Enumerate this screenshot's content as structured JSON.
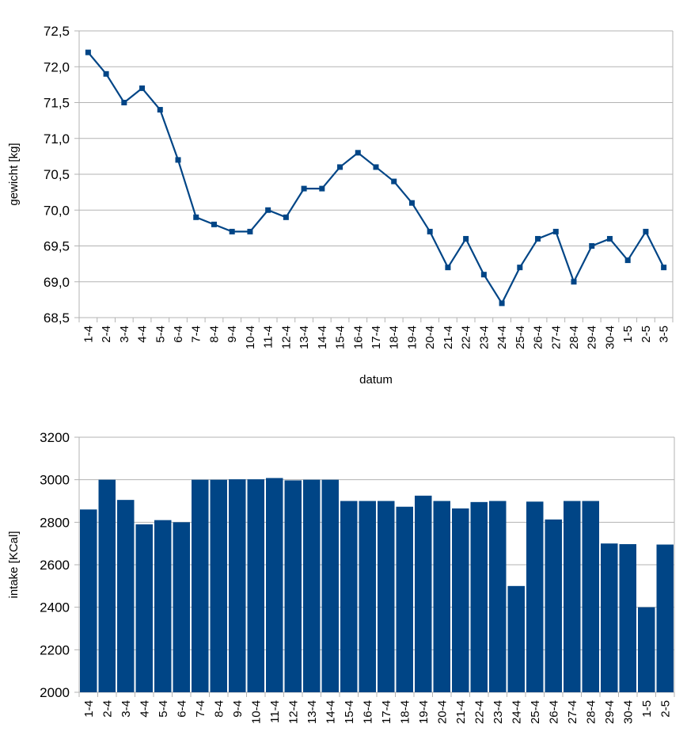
{
  "colors": {
    "series": "#004586",
    "grid": "#b3b3b3",
    "axis": "#000000"
  },
  "chart_data": [
    {
      "type": "line",
      "title": "",
      "xlabel": "datum",
      "ylabel": "gewicht [kg]",
      "ylim": [
        68.5,
        72.5
      ],
      "ytick_step": 0.5,
      "ytick_labels": [
        "68,5",
        "69,0",
        "69,5",
        "70,0",
        "70,5",
        "71,0",
        "71,5",
        "72,0",
        "72,5"
      ],
      "grid": true,
      "marker": "square",
      "categories": [
        "1-4",
        "2-4",
        "3-4",
        "4-4",
        "5-4",
        "6-4",
        "7-4",
        "8-4",
        "9-4",
        "10-4",
        "11-4",
        "12-4",
        "13-4",
        "14-4",
        "15-4",
        "16-4",
        "17-4",
        "18-4",
        "19-4",
        "20-4",
        "21-4",
        "22-4",
        "23-4",
        "24-4",
        "25-4",
        "26-4",
        "27-4",
        "28-4",
        "29-4",
        "30-4",
        "1-5",
        "2-5",
        "3-5"
      ],
      "values": [
        72.2,
        71.9,
        71.5,
        71.7,
        71.4,
        70.7,
        69.9,
        69.8,
        69.7,
        69.7,
        70.0,
        69.9,
        70.3,
        70.3,
        70.6,
        70.8,
        70.6,
        70.4,
        70.1,
        69.7,
        69.2,
        69.6,
        69.1,
        68.7,
        69.2,
        69.6,
        69.7,
        69.0,
        69.5,
        69.6,
        69.3,
        69.7,
        69.2
      ]
    },
    {
      "type": "bar",
      "title": "",
      "xlabel": "",
      "ylabel": "intake [KCal]",
      "ylim": [
        2000,
        3200
      ],
      "ytick_step": 200,
      "ytick_labels": [
        "2000",
        "2200",
        "2400",
        "2600",
        "2800",
        "3000",
        "3200"
      ],
      "grid": true,
      "categories": [
        "1-4",
        "2-4",
        "3-4",
        "4-4",
        "5-4",
        "6-4",
        "7-4",
        "8-4",
        "9-4",
        "10-4",
        "11-4",
        "12-4",
        "13-4",
        "14-4",
        "15-4",
        "16-4",
        "17-4",
        "18-4",
        "19-4",
        "20-4",
        "21-4",
        "22-4",
        "23-4",
        "24-4",
        "25-4",
        "26-4",
        "27-4",
        "28-4",
        "29-4",
        "30-4",
        "1-5",
        "2-5"
      ],
      "values": [
        2860,
        3000,
        2905,
        2790,
        2810,
        2800,
        3000,
        3000,
        3002,
        3002,
        3008,
        2997,
        3000,
        3000,
        2900,
        2900,
        2900,
        2873,
        2925,
        2900,
        2865,
        2895,
        2900,
        2500,
        2897,
        2813,
        2900,
        2900,
        2700,
        2697,
        2400,
        2695
      ]
    }
  ]
}
